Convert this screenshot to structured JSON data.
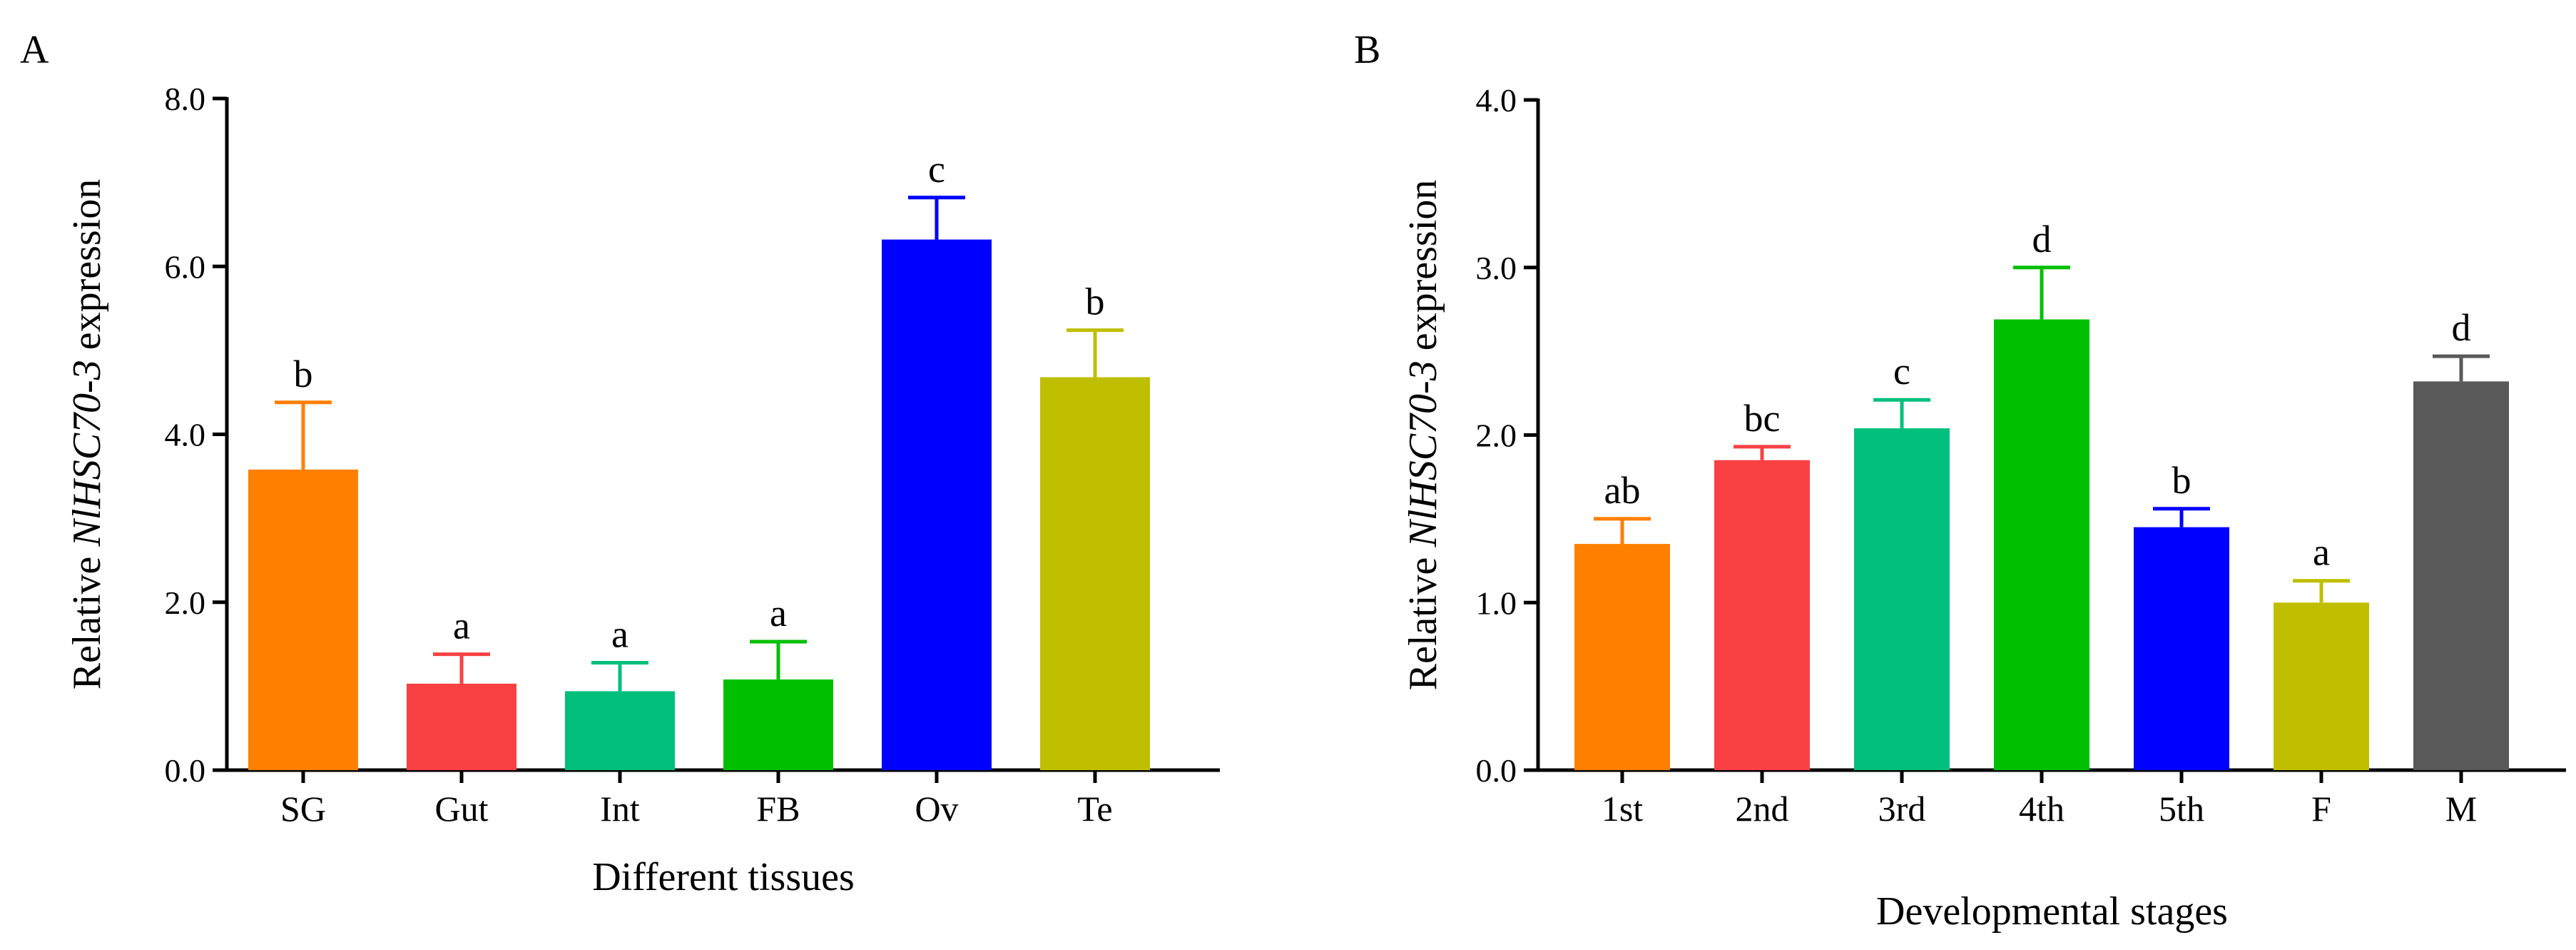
{
  "chart_data": [
    {
      "panel": "A",
      "type": "bar",
      "title": "",
      "xlabel": "Different tissues",
      "ylabel": {
        "prefix": "Relative ",
        "gene": "NlHSC70-3",
        "suffix": " expression"
      },
      "ylim": [
        0,
        8
      ],
      "yticks": [
        "0.0",
        "2.0",
        "4.0",
        "6.0",
        "8.0"
      ],
      "ytick_values": [
        0,
        2,
        4,
        6,
        8
      ],
      "categories": [
        "SG",
        "Gut",
        "Int",
        "FB",
        "Ov",
        "Te"
      ],
      "values": [
        3.58,
        1.03,
        0.94,
        1.08,
        6.32,
        4.68
      ],
      "errors": [
        0.8,
        0.35,
        0.34,
        0.45,
        0.5,
        0.56
      ],
      "significance": [
        "b",
        "a",
        "a",
        "a",
        "c",
        "b"
      ],
      "colors": [
        "#FF7F00",
        "#F94144",
        "#00BF7D",
        "#00BF00",
        "#0000FF",
        "#BFBF00"
      ]
    },
    {
      "panel": "B",
      "type": "bar",
      "title": "",
      "xlabel": "Developmental stages",
      "ylabel": {
        "prefix": "Relative ",
        "gene": "NlHSC70-3",
        "suffix": " expression"
      },
      "ylim": [
        0,
        4
      ],
      "yticks": [
        "0.0",
        "1.0",
        "2.0",
        "3.0",
        "4.0"
      ],
      "ytick_values": [
        0,
        1,
        2,
        3,
        4
      ],
      "categories": [
        "1st",
        "2nd",
        "3rd",
        "4th",
        "5th",
        "F",
        "M"
      ],
      "values": [
        1.35,
        1.85,
        2.04,
        2.69,
        1.45,
        1.0,
        2.32
      ],
      "errors": [
        0.15,
        0.08,
        0.17,
        0.31,
        0.11,
        0.13,
        0.15
      ],
      "significance": [
        "ab",
        "bc",
        "c",
        "d",
        "b",
        "a",
        "d"
      ],
      "colors": [
        "#FF7F00",
        "#F94144",
        "#00BF7D",
        "#00BF00",
        "#0000FF",
        "#BFBF00",
        "#595959"
      ]
    }
  ]
}
